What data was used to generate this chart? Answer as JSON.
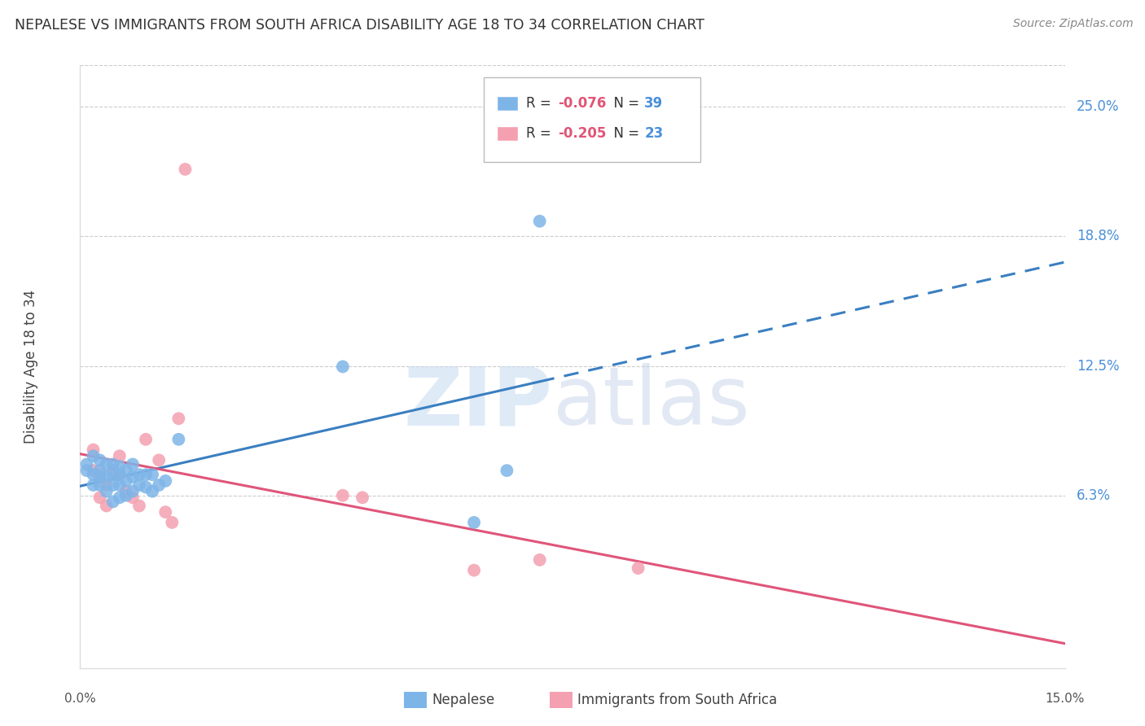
{
  "title": "NEPALESE VS IMMIGRANTS FROM SOUTH AFRICA DISABILITY AGE 18 TO 34 CORRELATION CHART",
  "source": "Source: ZipAtlas.com",
  "ylabel": "Disability Age 18 to 34",
  "xlim": [
    0.0,
    0.15
  ],
  "ylim": [
    -0.02,
    0.27
  ],
  "ytick_labels": [
    "6.3%",
    "12.5%",
    "18.8%",
    "25.0%"
  ],
  "ytick_values": [
    0.063,
    0.125,
    0.188,
    0.25
  ],
  "hlines": [
    0.063,
    0.125,
    0.188,
    0.25
  ],
  "nepalese_R": "-0.076",
  "nepalese_N": "39",
  "sa_R": "-0.205",
  "sa_N": "23",
  "nepalese_color": "#7EB5E8",
  "sa_color": "#F4A0B0",
  "nepalese_line_color": "#3A7FC1",
  "sa_line_color": "#E0557A",
  "background_color": "#FFFFFF",
  "nepalese_x": [
    0.001,
    0.001,
    0.002,
    0.002,
    0.002,
    0.003,
    0.003,
    0.003,
    0.003,
    0.004,
    0.004,
    0.004,
    0.005,
    0.005,
    0.005,
    0.005,
    0.006,
    0.006,
    0.006,
    0.006,
    0.007,
    0.007,
    0.007,
    0.008,
    0.008,
    0.008,
    0.009,
    0.009,
    0.01,
    0.01,
    0.011,
    0.011,
    0.012,
    0.013,
    0.015,
    0.04,
    0.06,
    0.065,
    0.07
  ],
  "nepalese_y": [
    0.075,
    0.078,
    0.068,
    0.073,
    0.082,
    0.068,
    0.072,
    0.075,
    0.08,
    0.065,
    0.072,
    0.078,
    0.06,
    0.068,
    0.073,
    0.078,
    0.062,
    0.068,
    0.073,
    0.077,
    0.063,
    0.07,
    0.075,
    0.065,
    0.072,
    0.078,
    0.068,
    0.073,
    0.067,
    0.073,
    0.065,
    0.073,
    0.068,
    0.07,
    0.09,
    0.125,
    0.05,
    0.075,
    0.195
  ],
  "sa_x": [
    0.002,
    0.002,
    0.003,
    0.003,
    0.004,
    0.004,
    0.005,
    0.006,
    0.006,
    0.007,
    0.008,
    0.009,
    0.01,
    0.012,
    0.013,
    0.014,
    0.015,
    0.016,
    0.04,
    0.043,
    0.06,
    0.07,
    0.085
  ],
  "sa_y": [
    0.075,
    0.085,
    0.062,
    0.073,
    0.058,
    0.068,
    0.075,
    0.073,
    0.082,
    0.065,
    0.062,
    0.058,
    0.09,
    0.08,
    0.055,
    0.05,
    0.1,
    0.22,
    0.063,
    0.062,
    0.027,
    0.032,
    0.028
  ],
  "legend_labels": [
    "Nepalese",
    "Immigrants from South Africa"
  ]
}
